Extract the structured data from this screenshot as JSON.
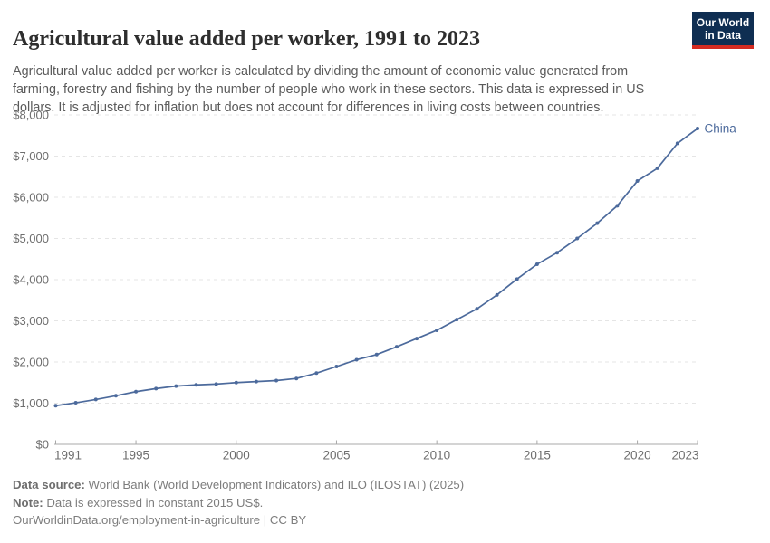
{
  "header": {
    "title": "Agricultural value added per worker, 1991 to 2023",
    "logo": {
      "line1": "Our World",
      "line2": "in Data"
    }
  },
  "subtitle": "Agricultural value added per worker is calculated by dividing the amount of economic value generated from farming, forestry and fishing by the number of people who work in these sectors. This data is expressed in US dollars. It is adjusted for inflation but does not account for differences in living costs between countries.",
  "chart_data": {
    "type": "line",
    "title": "Agricultural value added per worker, 1991 to 2023",
    "xlabel": "",
    "ylabel": "",
    "xlim": [
      1991,
      2023
    ],
    "ylim": [
      0,
      8000
    ],
    "x_ticks": [
      1991,
      1995,
      2000,
      2005,
      2010,
      2015,
      2020,
      2023
    ],
    "y_ticks": [
      0,
      1000,
      2000,
      3000,
      4000,
      5000,
      6000,
      7000,
      8000
    ],
    "y_tick_prefix": "$",
    "grid": "horizontal-dashed",
    "legend_position": "end-of-line",
    "series": [
      {
        "name": "China",
        "color": "#4c6a9c",
        "x": [
          1991,
          1992,
          1993,
          1994,
          1995,
          1996,
          1997,
          1998,
          1999,
          2000,
          2001,
          2002,
          2003,
          2004,
          2005,
          2006,
          2007,
          2008,
          2009,
          2010,
          2011,
          2012,
          2013,
          2014,
          2015,
          2016,
          2017,
          2018,
          2019,
          2020,
          2021,
          2022,
          2023
        ],
        "values": [
          940,
          1010,
          1090,
          1180,
          1280,
          1355,
          1415,
          1445,
          1465,
          1500,
          1525,
          1550,
          1600,
          1730,
          1890,
          2055,
          2180,
          2370,
          2570,
          2770,
          3030,
          3290,
          3630,
          4015,
          4375,
          4655,
          5000,
          5370,
          5795,
          6395,
          6705,
          7310,
          7670
        ]
      }
    ]
  },
  "colors": {
    "gridline": "#e5e5e5",
    "axis_line": "#a8a8a8",
    "axis_text": "#6e6e6e",
    "series_blue": "#4c6a9c",
    "logo_navy": "#0f2e52",
    "logo_red": "#d42b21"
  },
  "footer": {
    "source_label": "Data source:",
    "source_text": " World Bank (World Development Indicators) and ILO (ILOSTAT) (2025)",
    "note_label": "Note:",
    "note_text": " Data is expressed in constant 2015 US$.",
    "link_text": "OurWorldinData.org/employment-in-agriculture | CC BY"
  }
}
